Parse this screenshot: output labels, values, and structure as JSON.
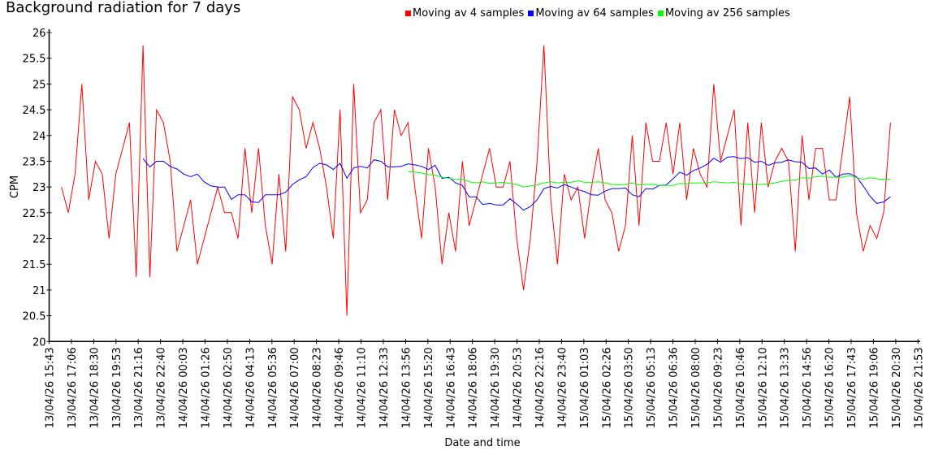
{
  "chart_data": {
    "type": "line",
    "title": "Background radiation for 7 days",
    "xlabel": "Date and time",
    "ylabel": "CPM",
    "ylim": [
      20,
      26
    ],
    "yticks": [
      "20",
      "20.5",
      "21",
      "21.5",
      "22",
      "22.5",
      "23",
      "23.5",
      "24",
      "24.5",
      "25",
      "25.5",
      "26"
    ],
    "x_unit": "hours since 13/04/26 15:43",
    "xlim": [
      0,
      54.167
    ],
    "xtick_step_hours": 1.3889,
    "xticks": [
      "13/04/26 15:43",
      "13/04/26 17:06",
      "13/04/26 18:30",
      "13/04/26 19:53",
      "13/04/26 21:16",
      "13/04/26 22:40",
      "14/04/26 00:03",
      "14/04/26 01:26",
      "14/04/26 02:50",
      "14/04/26 04:13",
      "14/04/26 05:36",
      "14/04/26 07:00",
      "14/04/26 08:23",
      "14/04/26 09:46",
      "14/04/26 11:10",
      "14/04/26 12:33",
      "14/04/26 13:56",
      "14/04/26 15:20",
      "14/04/26 16:43",
      "14/04/26 18:06",
      "14/04/26 19:30",
      "14/04/26 20:53",
      "14/04/26 22:16",
      "14/04/26 23:40",
      "15/04/26 01:03",
      "15/04/26 02:26",
      "15/04/26 03:50",
      "15/04/26 05:13",
      "15/04/26 06:36",
      "15/04/26 08:00",
      "15/04/26 09:23",
      "15/04/26 10:46",
      "15/04/26 12:10",
      "15/04/26 13:33",
      "15/04/26 14:56",
      "15/04/26 16:20",
      "15/04/26 17:43",
      "15/04/26 19:06",
      "15/04/26 20:30",
      "15/04/26 21:53"
    ],
    "sample_start_hours": 0.77,
    "sample_step_hours": 0.4236,
    "legend_position": "top-center",
    "grid": false,
    "series": [
      {
        "name": "Moving av 4 samples",
        "color": "#ff0000",
        "start_index": 0,
        "values": [
          23,
          22.5,
          23.25,
          25,
          22.75,
          23.5,
          23.25,
          22,
          23.25,
          23.75,
          24.25,
          21.25,
          25.75,
          21.25,
          24.5,
          24.25,
          23.5,
          21.75,
          22.25,
          22.75,
          21.5,
          22,
          22.5,
          23,
          22.5,
          22.5,
          22,
          23.75,
          22.5,
          23.75,
          22.25,
          21.5,
          23.25,
          21.75,
          24.75,
          24.5,
          23.75,
          24.25,
          23.75,
          23,
          22,
          24.5,
          20.5,
          25,
          22.5,
          22.75,
          24.25,
          24.5,
          22.75,
          24.5,
          24,
          24.25,
          23,
          22,
          23.75,
          23,
          21.5,
          22.5,
          21.75,
          23.5,
          22.25,
          22.75,
          23.25,
          23.75,
          23,
          23,
          23.5,
          22,
          21,
          22,
          23.5,
          25.75,
          22.75,
          21.5,
          23.25,
          22.75,
          23,
          22,
          23,
          23.75,
          22.75,
          22.5,
          21.75,
          22.25,
          24,
          22.25,
          24.25,
          23.5,
          23.5,
          24.25,
          23.25,
          24.25,
          22.75,
          23.75,
          23.25,
          23,
          25,
          23.5,
          24,
          24.5,
          22.25,
          24.25,
          22.5,
          24.25,
          23,
          23.5,
          23.75,
          23.5,
          21.75,
          24,
          22.75,
          23.75,
          23.75,
          22.75,
          22.75,
          23.75,
          24.75,
          22.5,
          21.75,
          22.25,
          22,
          22.5,
          24.25
        ]
      },
      {
        "name": "Moving av 64 samples",
        "color": "#0000ff",
        "start_index": 12,
        "values": [
          23.55,
          23.39,
          23.5,
          23.5,
          23.4,
          23.35,
          23.25,
          23.2,
          23.25,
          23.1,
          23.02,
          23,
          23,
          22.76,
          22.85,
          22.85,
          22.71,
          22.7,
          22.85,
          22.85,
          22.85,
          22.9,
          23.05,
          23.14,
          23.2,
          23.38,
          23.46,
          23.43,
          23.34,
          23.46,
          23.17,
          23.37,
          23.4,
          23.37,
          23.53,
          23.5,
          23.39,
          23.39,
          23.4,
          23.45,
          23.43,
          23.4,
          23.34,
          23.42,
          23.17,
          23.19,
          23.08,
          23.03,
          22.81,
          22.81,
          22.66,
          22.68,
          22.65,
          22.65,
          22.77,
          22.67,
          22.55,
          22.62,
          22.75,
          22.97,
          23.01,
          22.98,
          23.05,
          23,
          22.95,
          22.91,
          22.85,
          22.84,
          22.92,
          22.97,
          22.97,
          22.98,
          22.85,
          22.81,
          22.97,
          22.96,
          23.03,
          23.04,
          23.16,
          23.29,
          23.23,
          23.32,
          23.37,
          23.44,
          23.56,
          23.48,
          23.58,
          23.59,
          23.55,
          23.57,
          23.48,
          23.5,
          23.42,
          23.47,
          23.48,
          23.53,
          23.49,
          23.48,
          23.36,
          23.37,
          23.25,
          23.33,
          23.19,
          23.25,
          23.26,
          23.2,
          23.02,
          22.82,
          22.68,
          22.71,
          22.81
        ]
      },
      {
        "name": "Moving av 256 samples",
        "color": "#00ff00",
        "start_index": 51,
        "values": [
          23.3,
          23.29,
          23.27,
          23.24,
          23.23,
          23.19,
          23.17,
          23.15,
          23.15,
          23.1,
          23.08,
          23.1,
          23.07,
          23.08,
          23.09,
          23.07,
          23.05,
          23,
          23.02,
          23.04,
          23.08,
          23.1,
          23.08,
          23.09,
          23.09,
          23.12,
          23.09,
          23.09,
          23.1,
          23.08,
          23.05,
          23.04,
          23.05,
          23.08,
          23.04,
          23.05,
          23.05,
          23.03,
          23.03,
          23.03,
          23.07,
          23.06,
          23.08,
          23.08,
          23.08,
          23.1,
          23.09,
          23.08,
          23.09,
          23.06,
          23.05,
          23.05,
          23.05,
          23.06,
          23.08,
          23.11,
          23.13,
          23.13,
          23.18,
          23.17,
          23.2,
          23.21,
          23.19,
          23.19,
          23.19,
          23.22,
          23.18,
          23.15,
          23.18,
          23.16,
          23.15,
          23.15
        ]
      }
    ]
  }
}
